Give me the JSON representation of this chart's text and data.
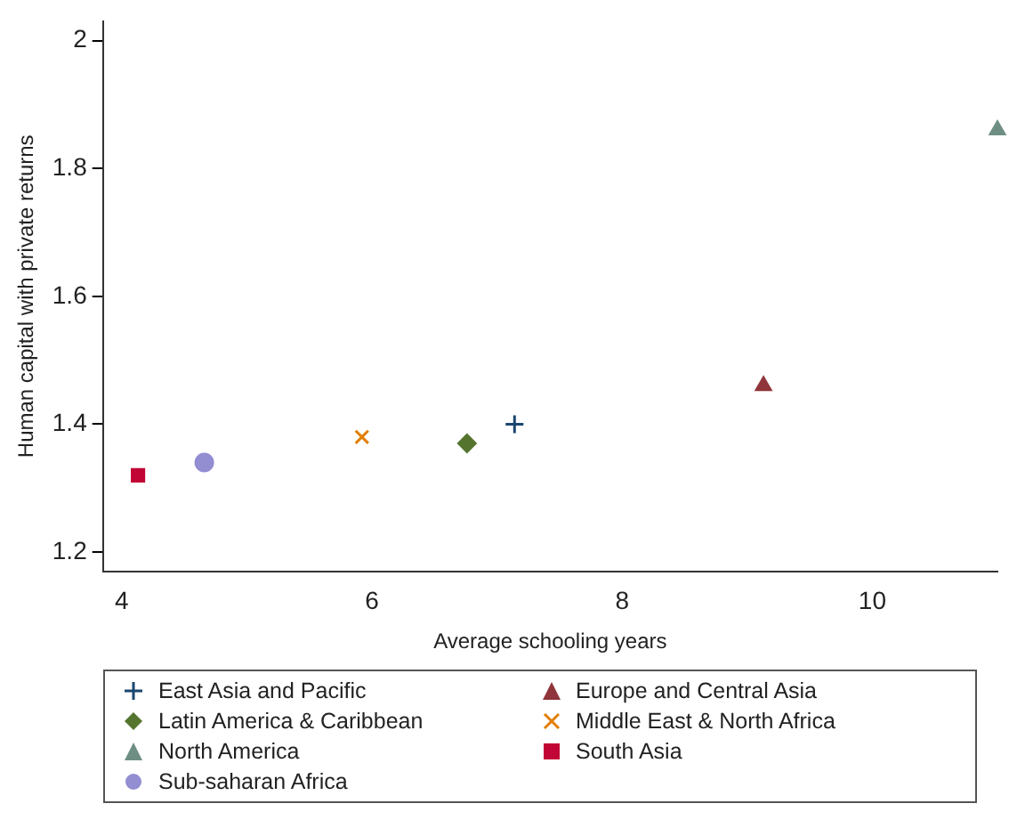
{
  "chart_data": {
    "type": "scatter",
    "xlabel": "Average schooling years",
    "ylabel": "Human capital with private returns",
    "xlim": [
      3.85,
      11
    ],
    "ylim": [
      1.17,
      2.03
    ],
    "xticks": [
      4,
      6,
      8,
      10
    ],
    "yticks": [
      1.2,
      1.4,
      1.6,
      1.8,
      2
    ],
    "grid": false,
    "legend": "bottom",
    "series": [
      {
        "name": "East Asia and Pacific",
        "color": "#1a476f",
        "marker": "cross",
        "x": [
          7.14
        ],
        "values": [
          1.4
        ]
      },
      {
        "name": "Europe and Central Asia",
        "color": "#90353b",
        "marker": "triangle",
        "x": [
          9.13
        ],
        "values": [
          1.46
        ]
      },
      {
        "name": "Latin America & Caribbean",
        "color": "#55752f",
        "marker": "diamond",
        "x": [
          6.76
        ],
        "values": [
          1.37
        ]
      },
      {
        "name": "Middle East & North Africa",
        "color": "#e37e00",
        "marker": "x",
        "x": [
          5.92
        ],
        "values": [
          1.38
        ]
      },
      {
        "name": "North America",
        "color": "#6e8e84",
        "marker": "triangle",
        "x": [
          11
        ],
        "values": [
          1.86
        ]
      },
      {
        "name": "South Asia",
        "color": "#c10534",
        "marker": "square",
        "x": [
          4.13
        ],
        "values": [
          1.32
        ]
      },
      {
        "name": "Sub-saharan Africa",
        "color": "#938dd2",
        "marker": "circle",
        "x": [
          4.66
        ],
        "values": [
          1.34
        ]
      }
    ]
  }
}
